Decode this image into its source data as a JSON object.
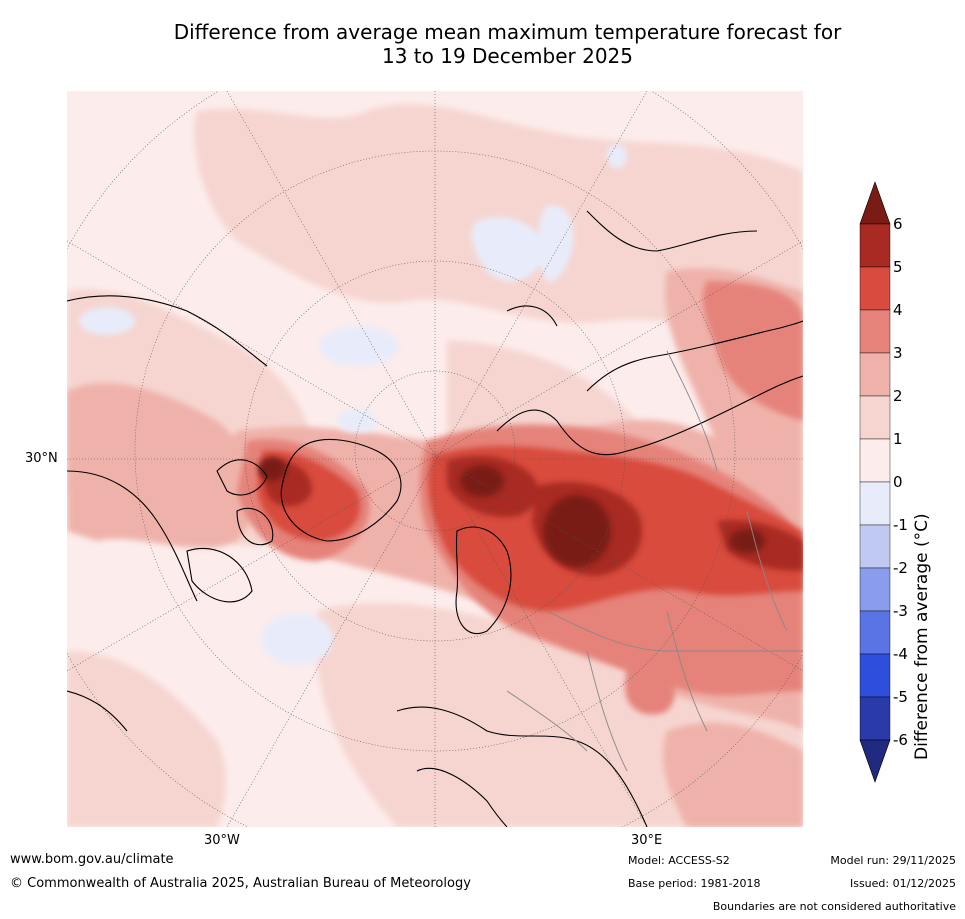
{
  "title_line1": "Difference from average mean maximum temperature forecast for",
  "title_line2": "13 to 19 December 2025",
  "lat_labels": [
    "30°N"
  ],
  "lon_labels": [
    "30°W",
    "30°E"
  ],
  "legend": {
    "title": "Difference from average (°C)",
    "tick_labels": [
      "6",
      "5",
      "4",
      "3",
      "2",
      "1",
      "0",
      "-1",
      "-2",
      "-3",
      "-4",
      "-5",
      "-6"
    ],
    "colors": [
      "#7a1b15",
      "#a82a22",
      "#d84b3e",
      "#e5837a",
      "#efb2aa",
      "#f6d5d0",
      "#fceceb",
      "#e8ecfa",
      "#c0c9f2",
      "#8a9cec",
      "#5a74e6",
      "#2d4fdc",
      "#2a3aa8",
      "#1f2a80"
    ]
  },
  "footer": {
    "url": "www.bom.gov.au/climate",
    "copyright": "© Commonwealth of Australia 2025, Australian Bureau of Meteorology",
    "model": "Model: ACCESS-S2",
    "base_period": "Base period: 1981-2018",
    "model_run": "Model run: 29/11/2025",
    "issued": "Issued: 01/12/2025",
    "disclaimer": "Boundaries are not considered authoritative"
  }
}
